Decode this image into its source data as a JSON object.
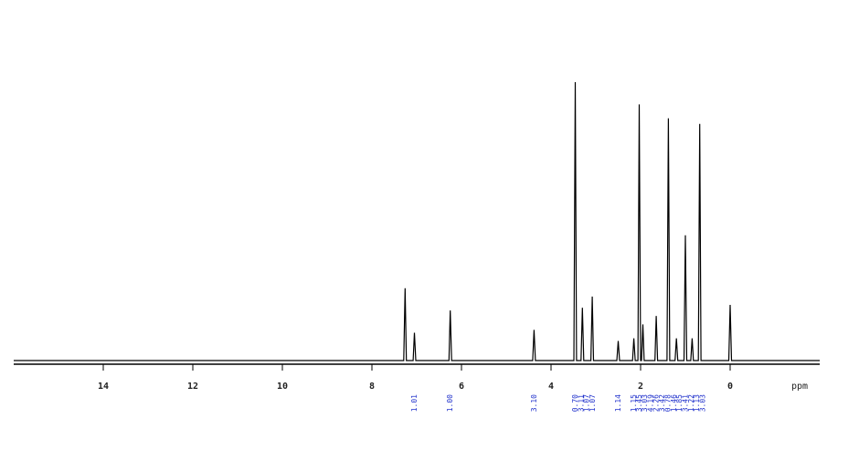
{
  "chart_data": {
    "type": "line",
    "x_label": "ppm",
    "color": "#000000",
    "integral_color": "#2233cc",
    "xlim": [
      16,
      -2
    ],
    "ylim": [
      0,
      100
    ],
    "xticks": [
      14,
      12,
      10,
      8,
      6,
      4,
      2,
      0
    ],
    "x": [
      16,
      7.29,
      7.26,
      7.23,
      7.08,
      7.05,
      7.02,
      6.28,
      6.25,
      6.22,
      4.41,
      4.38,
      4.35,
      3.49,
      3.46,
      3.43,
      3.33,
      3.3,
      3.27,
      3.11,
      3.08,
      3.05,
      2.53,
      2.5,
      2.47,
      2.18,
      2.15,
      2.12,
      2.06,
      2.03,
      2.0,
      1.98,
      1.95,
      1.92,
      1.68,
      1.65,
      1.62,
      1.41,
      1.38,
      1.35,
      1.23,
      1.2,
      1.17,
      1.03,
      1.0,
      0.97,
      0.88,
      0.85,
      0.82,
      0.71,
      0.68,
      0.65,
      0.03,
      0.0,
      -0.03,
      -2
    ],
    "values": [
      0,
      0,
      26,
      0,
      0,
      10,
      0,
      0,
      18,
      0,
      0,
      11,
      0,
      0,
      100,
      0,
      0,
      19,
      0,
      0,
      23,
      0,
      0,
      7,
      0,
      0,
      8,
      0,
      0,
      92,
      0,
      0,
      13,
      0,
      0,
      16,
      0,
      0,
      87,
      0,
      0,
      8,
      0,
      0,
      45,
      0,
      0,
      8,
      0,
      0,
      85,
      0,
      0,
      20,
      0,
      0
    ],
    "integrals": [
      {
        "x": 7.05,
        "label": "1.01"
      },
      {
        "x": 6.25,
        "label": "1.00"
      },
      {
        "x": 4.38,
        "label": "3.10"
      },
      {
        "x": 3.46,
        "label": "0.70"
      },
      {
        "x": 3.33,
        "label": "3.11"
      },
      {
        "x": 3.2,
        "label": "1.07"
      },
      {
        "x": 3.07,
        "label": "1.07"
      },
      {
        "x": 2.5,
        "label": "1.14"
      },
      {
        "x": 2.15,
        "label": "1.15"
      },
      {
        "x": 2.03,
        "label": "3.45"
      },
      {
        "x": 1.91,
        "label": "3.03"
      },
      {
        "x": 1.78,
        "label": "4.19"
      },
      {
        "x": 1.65,
        "label": "2.26"
      },
      {
        "x": 1.52,
        "label": "3.42"
      },
      {
        "x": 1.39,
        "label": "0.78"
      },
      {
        "x": 1.26,
        "label": "1.46"
      },
      {
        "x": 1.13,
        "label": "1.85"
      },
      {
        "x": 1.0,
        "label": "3.41"
      },
      {
        "x": 0.87,
        "label": "1.22"
      },
      {
        "x": 0.74,
        "label": "1.13"
      },
      {
        "x": 0.61,
        "label": "3.03"
      }
    ]
  }
}
